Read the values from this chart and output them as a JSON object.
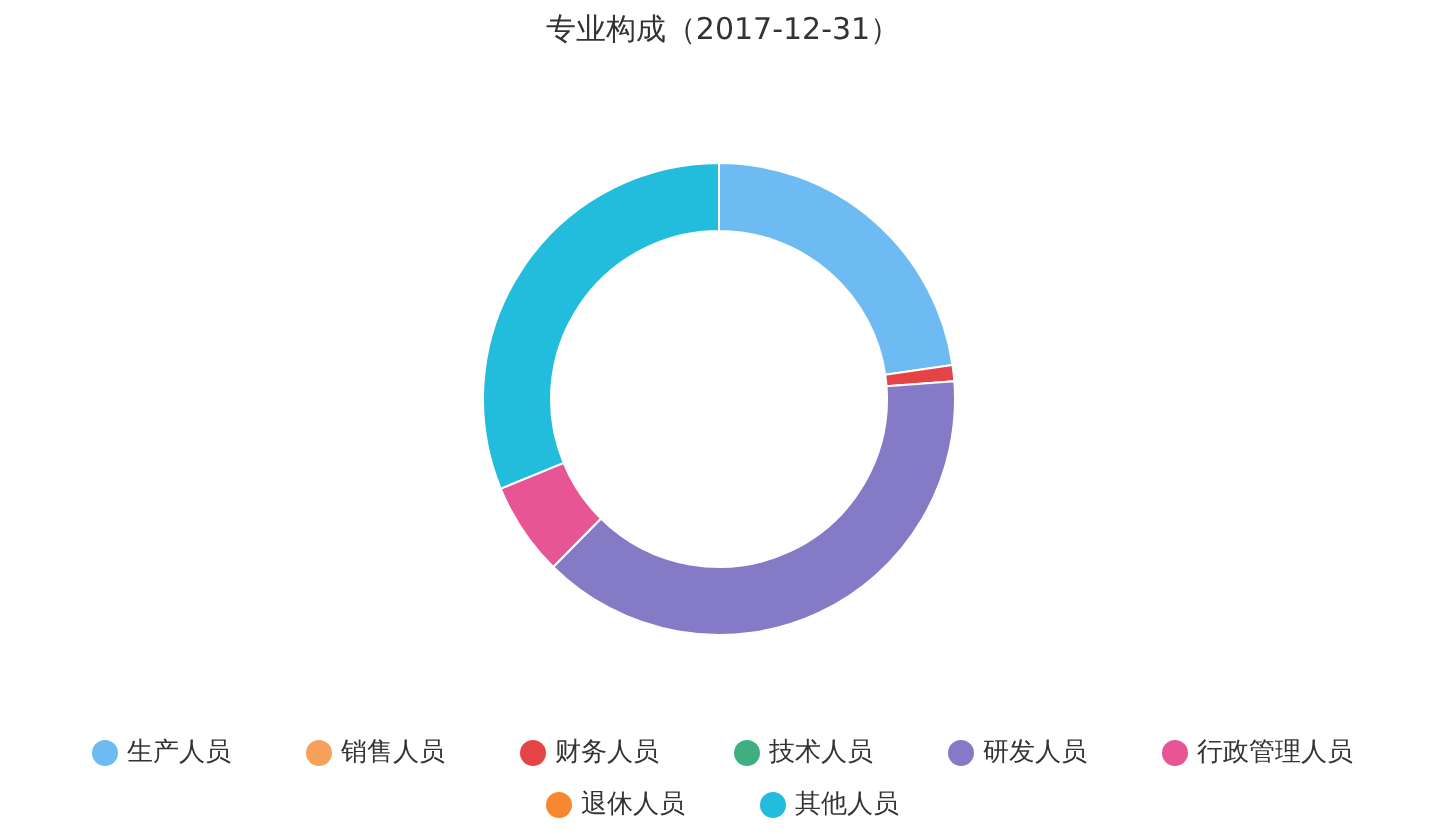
{
  "chart_data": {
    "type": "donut",
    "title": "专业构成（2017-12-31）",
    "categories": [
      "生产人员",
      "销售人员",
      "财务人员",
      "技术人员",
      "研发人员",
      "行政管理人员",
      "退休人员",
      "其他人员"
    ],
    "values": [
      22.7,
      0,
      1.1,
      0,
      38.6,
      6.4,
      0,
      31.2
    ],
    "colors": [
      "#6dbbf2",
      "#f7a25c",
      "#e54446",
      "#3faf82",
      "#857ac6",
      "#e75595",
      "#f7882f",
      "#22bcdc"
    ],
    "legend": "bottom"
  }
}
